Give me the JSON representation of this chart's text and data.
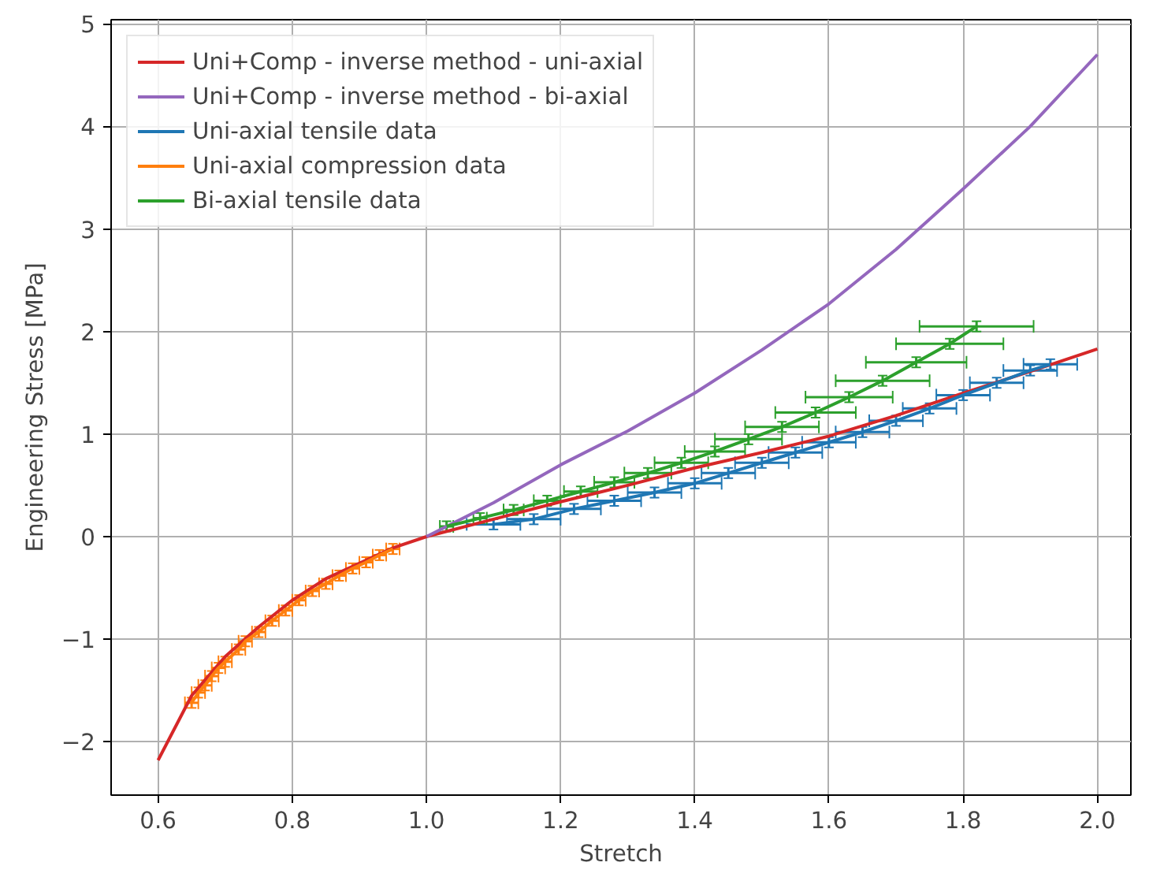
{
  "chart_data": {
    "type": "line",
    "xlabel": "Stretch",
    "ylabel": "Engineering Stress [MPa]",
    "xlim": [
      0.53,
      2.05
    ],
    "ylim": [
      -2.52,
      5.04
    ],
    "xticks": [
      {
        "value": 0.6,
        "label": "0.6"
      },
      {
        "value": 0.8,
        "label": "0.8"
      },
      {
        "value": 1.0,
        "label": "1.0"
      },
      {
        "value": 1.2,
        "label": "1.2"
      },
      {
        "value": 1.4,
        "label": "1.4"
      },
      {
        "value": 1.6,
        "label": "1.6"
      },
      {
        "value": 1.8,
        "label": "1.8"
      },
      {
        "value": 2.0,
        "label": "2.0"
      }
    ],
    "yticks": [
      {
        "value": -2,
        "label": "−2"
      },
      {
        "value": -1,
        "label": "−1"
      },
      0,
      1,
      2,
      3,
      4,
      5
    ],
    "grid": true,
    "legend": "top left",
    "series": [
      {
        "name": "Uni+Comp - inverse method - uni-axial",
        "color": "#d62728",
        "x": [
          0.6,
          0.65,
          0.7,
          0.75,
          0.8,
          0.85,
          0.9,
          0.95,
          1.0,
          1.1,
          1.2,
          1.3,
          1.4,
          1.5,
          1.6,
          1.7,
          1.8,
          1.9,
          2.0
        ],
        "values": [
          -2.18,
          -1.55,
          -1.17,
          -0.88,
          -0.62,
          -0.41,
          -0.26,
          -0.11,
          0,
          0.17,
          0.34,
          0.5,
          0.67,
          0.82,
          0.98,
          1.18,
          1.4,
          1.61,
          1.83
        ]
      },
      {
        "name": "Uni+Comp - inverse method - bi-axial",
        "color": "#9467bd",
        "x": [
          1.0,
          1.1,
          1.2,
          1.3,
          1.4,
          1.5,
          1.6,
          1.7,
          1.8,
          1.9,
          2.0
        ],
        "values": [
          0,
          0.33,
          0.7,
          1.03,
          1.4,
          1.82,
          2.27,
          2.8,
          3.39,
          4.0,
          4.7
        ]
      },
      {
        "name": "Uni-axial tensile data",
        "color": "#1f77b4",
        "x": [
          1.1,
          1.16,
          1.22,
          1.28,
          1.34,
          1.4,
          1.45,
          1.5,
          1.55,
          1.6,
          1.65,
          1.7,
          1.75,
          1.8,
          1.85,
          1.9,
          1.93
        ],
        "values": [
          0.12,
          0.17,
          0.27,
          0.35,
          0.43,
          0.52,
          0.62,
          0.72,
          0.82,
          0.92,
          1.02,
          1.13,
          1.25,
          1.38,
          1.5,
          1.62,
          1.68
        ],
        "xerrors": [
          0.04,
          0.04,
          0.04,
          0.04,
          0.04,
          0.04,
          0.04,
          0.04,
          0.04,
          0.04,
          0.04,
          0.04,
          0.04,
          0.04,
          0.04,
          0.04,
          0.04
        ],
        "errors": [
          0.05,
          0.05,
          0.05,
          0.05,
          0.05,
          0.05,
          0.05,
          0.05,
          0.05,
          0.05,
          0.05,
          0.05,
          0.05,
          0.05,
          0.05,
          0.05,
          0.05
        ]
      },
      {
        "name": "Uni-axial compression data",
        "color": "#ff7f0e",
        "x": [
          0.65,
          0.66,
          0.67,
          0.68,
          0.69,
          0.7,
          0.72,
          0.73,
          0.75,
          0.77,
          0.79,
          0.81,
          0.83,
          0.85,
          0.87,
          0.89,
          0.91,
          0.93,
          0.95
        ],
        "values": [
          -1.62,
          -1.52,
          -1.45,
          -1.36,
          -1.28,
          -1.22,
          -1.1,
          -1.02,
          -0.93,
          -0.82,
          -0.72,
          -0.62,
          -0.53,
          -0.46,
          -0.38,
          -0.31,
          -0.25,
          -0.18,
          -0.12
        ],
        "xerrors": [
          0.01,
          0.01,
          0.01,
          0.01,
          0.01,
          0.01,
          0.01,
          0.01,
          0.01,
          0.01,
          0.01,
          0.01,
          0.01,
          0.01,
          0.01,
          0.01,
          0.01,
          0.01,
          0.01
        ],
        "errors": [
          0.05,
          0.05,
          0.05,
          0.05,
          0.05,
          0.05,
          0.05,
          0.05,
          0.05,
          0.05,
          0.05,
          0.05,
          0.05,
          0.05,
          0.05,
          0.05,
          0.05,
          0.05,
          0.05
        ]
      },
      {
        "name": "Bi-axial tensile data",
        "color": "#2ca02c",
        "x": [
          1.03,
          1.08,
          1.13,
          1.18,
          1.23,
          1.28,
          1.33,
          1.38,
          1.43,
          1.48,
          1.53,
          1.58,
          1.63,
          1.68,
          1.73,
          1.78,
          1.82
        ],
        "values": [
          0.1,
          0.18,
          0.26,
          0.35,
          0.44,
          0.53,
          0.62,
          0.72,
          0.83,
          0.95,
          1.07,
          1.21,
          1.36,
          1.52,
          1.7,
          1.88,
          2.05
        ],
        "xerrors": [
          0.01,
          0.01,
          0.015,
          0.02,
          0.025,
          0.03,
          0.035,
          0.04,
          0.045,
          0.05,
          0.055,
          0.06,
          0.065,
          0.07,
          0.075,
          0.08,
          0.085
        ],
        "errors": [
          0.05,
          0.05,
          0.05,
          0.05,
          0.05,
          0.05,
          0.05,
          0.05,
          0.05,
          0.05,
          0.05,
          0.05,
          0.05,
          0.05,
          0.05,
          0.05,
          0.05
        ]
      }
    ]
  }
}
